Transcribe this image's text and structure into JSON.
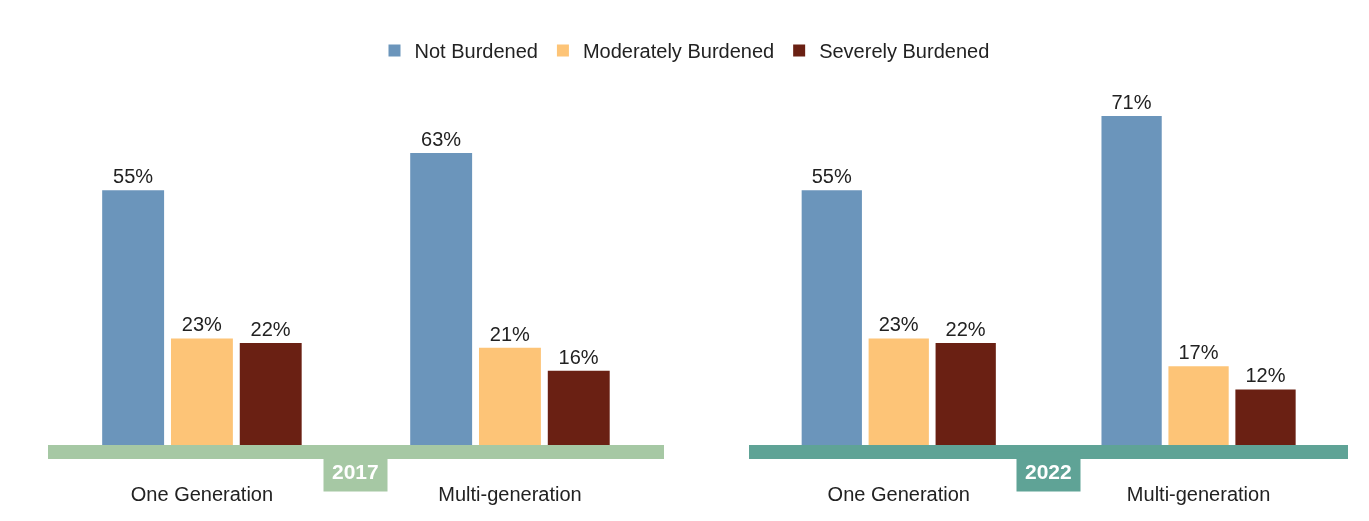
{
  "chart_data": [
    {
      "type": "bar",
      "categories": [
        "One Generation",
        "Multi-generation"
      ],
      "series": [
        {
          "name": "Not Burdened",
          "color": "#6b95bb",
          "values": [
            55,
            63
          ],
          "value_labels": [
            "55%",
            "63%"
          ]
        },
        {
          "name": "Moderately Burdened",
          "color": "#fdc477",
          "values": [
            23,
            21
          ],
          "value_labels": [
            "23%",
            "21%"
          ]
        },
        {
          "name": "Severely Burdened",
          "color": "#6a2013",
          "values": [
            22,
            16
          ],
          "value_labels": [
            "22%",
            "16%"
          ]
        }
      ],
      "tick_labels": "x",
      "legend": "top",
      "annotations": [
        "2017"
      ]
    },
    {
      "type": "bar",
      "categories": [
        "One Generation",
        "Multi-generation"
      ],
      "series": [
        {
          "color": "#6b95bb",
          "values": [
            55,
            71
          ],
          "value_labels": [
            "55%",
            "71%"
          ]
        },
        {
          "color": "#fdc477",
          "values": [
            23,
            17
          ],
          "value_labels": [
            "23%",
            "17%"
          ]
        },
        {
          "color": "#6a2013",
          "values": [
            22,
            12
          ],
          "value_labels": [
            "22%",
            "12%"
          ]
        }
      ],
      "tick_labels": "x",
      "annotations": [
        "2022"
      ]
    }
  ]
}
